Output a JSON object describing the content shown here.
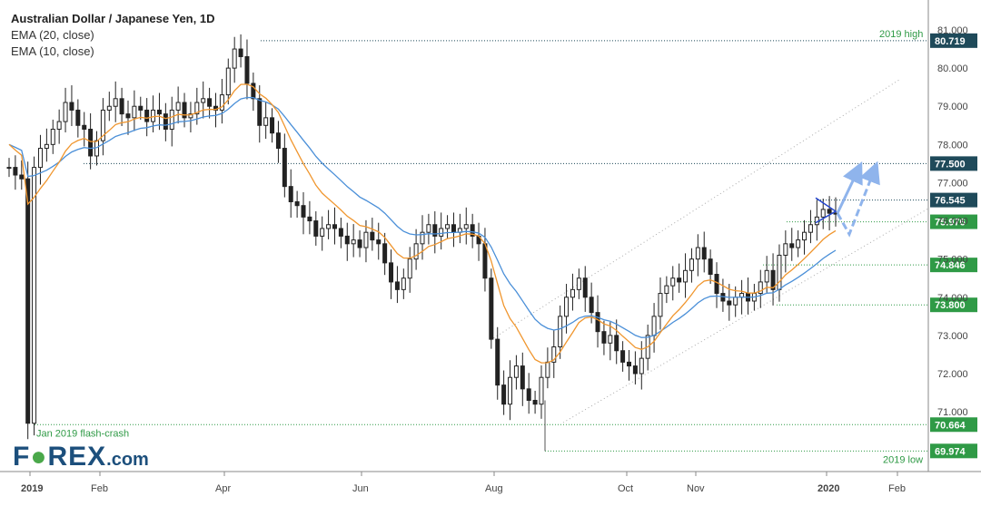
{
  "legend": {
    "title": "Australian Dollar / Japanese Yen, 1D",
    "ema20": "EMA (20, close)",
    "ema10": "EMA (10, close)"
  },
  "logo": {
    "part1": "F",
    "part2": "REX",
    "part3": ".com"
  },
  "colors": {
    "ema20": "#4a8fd8",
    "ema10": "#f0962e",
    "level_box": "#2f9a46",
    "level_dark": "#1f4a5a",
    "candle": "#222222",
    "arrow": "#8fb4ec",
    "annotation_text": "#2f9a46"
  },
  "chart_data": {
    "type": "candlestick",
    "title": "Australian Dollar / Japanese Yen, 1D",
    "x_ticks": [
      "2019",
      "Feb",
      "Apr",
      "Jun",
      "Aug",
      "Oct",
      "Nov",
      "2020",
      "Feb"
    ],
    "y_ticks": [
      "81.000",
      "80.000",
      "79.000",
      "78.000",
      "77.000",
      "76.000",
      "75.000",
      "74.000",
      "73.000",
      "72.000",
      "71.000"
    ],
    "ylim": [
      69.6,
      81.5
    ],
    "levels": [
      {
        "value": 80.719,
        "label": "80.719",
        "style": "dark",
        "note": "2019 high"
      },
      {
        "value": 77.5,
        "label": "77.500",
        "style": "dark",
        "note": ""
      },
      {
        "value": 76.545,
        "label": "76.545",
        "style": "dark",
        "note": ""
      },
      {
        "value": 75.976,
        "label": "75.976",
        "style": "green",
        "note": ""
      },
      {
        "value": 74.846,
        "label": "74.846",
        "style": "green",
        "note": ""
      },
      {
        "value": 73.8,
        "label": "73.800",
        "style": "green",
        "note": ""
      },
      {
        "value": 70.664,
        "label": "70.664",
        "style": "green",
        "note": "Jan 2019 flash-crash"
      },
      {
        "value": 69.974,
        "label": "69.974",
        "style": "green",
        "note": "2019 low"
      }
    ],
    "close_series": [
      77.4,
      77.2,
      77.1,
      70.7,
      77.4,
      77.9,
      78.0,
      78.4,
      78.6,
      79.1,
      78.9,
      78.5,
      78.4,
      77.7,
      78.1,
      78.9,
      79.0,
      79.2,
      78.8,
      78.7,
      79.0,
      78.9,
      78.6,
      78.9,
      78.8,
      78.4,
      78.9,
      79.1,
      78.7,
      78.8,
      79.1,
      79.2,
      79.0,
      78.9,
      79.3,
      80.0,
      80.5,
      80.3,
      79.6,
      79.2,
      78.5,
      78.7,
      78.3,
      77.9,
      76.9,
      76.5,
      76.4,
      76.1,
      76.0,
      75.6,
      75.8,
      75.9,
      75.8,
      75.6,
      75.4,
      75.5,
      75.3,
      75.7,
      75.5,
      75.4,
      74.9,
      74.4,
      74.2,
      74.5,
      75.0,
      75.4,
      75.7,
      75.9,
      75.6,
      75.8,
      75.9,
      75.7,
      75.8,
      75.9,
      75.6,
      75.4,
      74.5,
      72.9,
      71.7,
      71.2,
      71.9,
      72.2,
      71.6,
      71.3,
      71.2,
      71.9,
      72.3,
      72.7,
      73.5,
      74.0,
      74.2,
      74.5,
      74.0,
      73.6,
      73.1,
      72.8,
      73.0,
      72.6,
      72.3,
      72.2,
      72.0,
      72.4,
      73.0,
      73.5,
      74.1,
      74.3,
      74.5,
      74.4,
      74.7,
      75.0,
      75.3,
      75.0,
      74.6,
      74.1,
      73.9,
      73.8,
      74.0,
      74.1,
      73.9,
      74.1,
      74.4,
      74.7,
      74.2,
      75.1,
      75.4,
      75.3,
      75.5,
      75.7,
      75.9,
      76.1,
      76.3,
      76.2,
      76.2
    ],
    "annotations": [
      {
        "text": "2019 high"
      },
      {
        "text": "Jan 2019 flash-crash"
      },
      {
        "text": "2019 low"
      }
    ]
  }
}
